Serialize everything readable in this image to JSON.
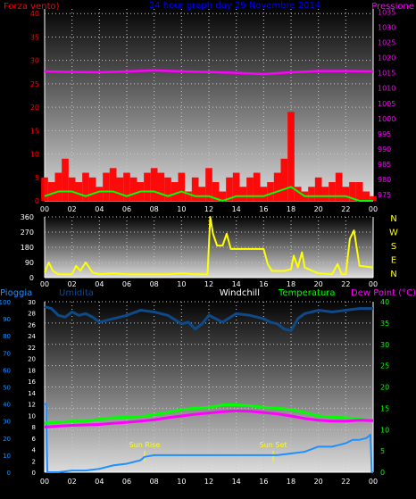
{
  "colors": {
    "background": "#000000",
    "wind": "#ff0000",
    "gust": "#00ff00",
    "pressure": "#ff00ff",
    "title": "#0000ff",
    "direction": "#ffff00",
    "rain": "#1e90ff",
    "humidity": "#0e4a8a",
    "windchill": "#ffffff",
    "temperature": "#00ff00",
    "dewpoint": "#ff00ff",
    "sun": "#ffff00"
  },
  "chart_data": [
    {
      "type": "line",
      "panel": "wind-pressure",
      "title": "24 hour graph day 29 Novembre 2014",
      "left_axis_label": "Forza vento)",
      "right_axis_label": "Pressione",
      "left_ticks": [
        "0",
        "5",
        "10",
        "15",
        "20",
        "25",
        "30",
        "35",
        "40"
      ],
      "right_ticks": [
        "975",
        "980",
        "985",
        "990",
        "995",
        "1000",
        "1005",
        "1010",
        "1015",
        "1020",
        "1025",
        "1030",
        "1035"
      ],
      "x_ticks": [
        "00",
        "02",
        "04",
        "06",
        "08",
        "10",
        "12",
        "14",
        "16",
        "18",
        "20",
        "22",
        "00"
      ],
      "xlim": [
        0,
        24
      ],
      "ylim_left": [
        0,
        41
      ],
      "ylim_right": [
        973,
        1036
      ],
      "series": [
        {
          "role": "wind_speed",
          "x": [
            0,
            0.5,
            1,
            1.5,
            2,
            2.5,
            3,
            3.5,
            4,
            4.5,
            5,
            5.5,
            6,
            6.5,
            7,
            7.5,
            8,
            8.5,
            9,
            9.5,
            10,
            10.5,
            11,
            11.5,
            12,
            12.5,
            13,
            13.5,
            14,
            14.5,
            15,
            15.5,
            16,
            16.5,
            17,
            17.5,
            18,
            18.5,
            19,
            19.5,
            20,
            20.5,
            21,
            21.5,
            22,
            22.5,
            23,
            23.5,
            24
          ],
          "values": [
            5,
            4,
            6,
            9,
            5,
            4,
            6,
            5,
            3,
            6,
            7,
            5,
            6,
            5,
            4,
            6,
            7,
            6,
            5,
            4,
            6,
            2,
            5,
            3,
            7,
            4,
            2,
            5,
            6,
            3,
            5,
            6,
            3,
            4,
            6,
            9,
            19,
            3,
            2,
            3,
            5,
            3,
            4,
            6,
            3,
            4,
            4,
            2,
            1
          ]
        },
        {
          "role": "wind_gust",
          "x": [
            0,
            1,
            2,
            3,
            4,
            5,
            6,
            7,
            8,
            9,
            10,
            11,
            12,
            13,
            14,
            15,
            16,
            17,
            18,
            19,
            20,
            21,
            22,
            23,
            24
          ],
          "values": [
            1,
            2,
            2,
            1,
            2,
            2,
            1,
            2,
            2,
            1,
            2,
            1,
            1,
            0,
            1,
            1,
            1,
            2,
            3,
            1,
            1,
            1,
            1,
            0,
            0
          ]
        },
        {
          "role": "pressure",
          "x": [
            0,
            2,
            4,
            6,
            8,
            10,
            12,
            14,
            16,
            18,
            20,
            22,
            24
          ],
          "values": [
            1015.5,
            1015.3,
            1015.2,
            1015.5,
            1015.8,
            1015.5,
            1015.3,
            1015.0,
            1014.6,
            1015.2,
            1015.6,
            1015.6,
            1015.5
          ]
        }
      ]
    },
    {
      "type": "line",
      "panel": "wind-direction",
      "y_ticks": [
        "0",
        "90",
        "180",
        "270",
        "360"
      ],
      "cardinal_labels": [
        "N",
        "W",
        "S",
        "E",
        "N"
      ],
      "x_ticks": [
        "00",
        "02",
        "04",
        "06",
        "08",
        "10",
        "12",
        "14",
        "16",
        "18",
        "20",
        "22",
        "00"
      ],
      "xlim": [
        0,
        24
      ],
      "ylim": [
        0,
        360
      ],
      "series": [
        {
          "role": "wind_direction",
          "x": [
            0,
            0.3,
            0.6,
            1,
            1.5,
            2,
            2.3,
            2.6,
            3,
            3.5,
            4,
            5,
            6,
            7,
            8,
            9,
            10,
            11,
            11.9,
            12.1,
            12.3,
            12.6,
            13,
            13.3,
            13.6,
            14,
            15,
            16,
            16.3,
            16.6,
            17,
            17.5,
            18,
            18.2,
            18.5,
            18.8,
            19,
            20,
            21,
            21.4,
            21.7,
            22,
            22.3,
            22.6,
            23,
            24
          ],
          "values": [
            30,
            90,
            40,
            20,
            20,
            20,
            70,
            40,
            90,
            30,
            20,
            25,
            20,
            20,
            20,
            20,
            25,
            20,
            20,
            360,
            260,
            190,
            190,
            260,
            170,
            170,
            170,
            170,
            80,
            40,
            40,
            40,
            50,
            130,
            60,
            150,
            60,
            25,
            20,
            80,
            20,
            20,
            230,
            280,
            70,
            60
          ]
        }
      ]
    },
    {
      "type": "line",
      "panel": "temperature-humidity",
      "legend": [
        "Pioggia",
        "Umidita",
        "Windchill",
        "Temperatura",
        "Dew Point (°C)"
      ],
      "left_ticks_rain": [
        "0",
        "10",
        "20",
        "30",
        "40",
        "50",
        "60",
        "70",
        "80",
        "90",
        "100"
      ],
      "left_ticks_humidity": [
        "0",
        "2",
        "4",
        "6",
        "8",
        "10",
        "12",
        "14",
        "16",
        "18",
        "20",
        "22",
        "24",
        "26",
        "28",
        "30"
      ],
      "right_ticks": [
        "0",
        "5",
        "10",
        "15",
        "20",
        "25",
        "30",
        "35",
        "40"
      ],
      "x_ticks": [
        "00",
        "02",
        "04",
        "06",
        "08",
        "10",
        "12",
        "14",
        "16",
        "18",
        "20",
        "22",
        "00"
      ],
      "xlim": [
        0,
        24
      ],
      "ylim_rain": [
        0,
        100
      ],
      "ylim_temp": [
        0,
        40
      ],
      "annotations": [
        {
          "label": "Sun Rise",
          "x": 7.3
        },
        {
          "label": "Sun Set",
          "x": 16.7
        }
      ],
      "series": [
        {
          "role": "humidity",
          "x": [
            0,
            0.5,
            1,
            1.5,
            2,
            2.5,
            3,
            3.5,
            4,
            5,
            6,
            7,
            8,
            9,
            10,
            10.5,
            11,
            11.5,
            12,
            12.5,
            13,
            14,
            15,
            16,
            16.5,
            17,
            17.5,
            18,
            18.5,
            19,
            20,
            21,
            22,
            23,
            24
          ],
          "values": [
            97,
            96,
            92,
            91,
            94,
            92,
            93,
            91,
            88,
            90,
            92,
            95,
            94,
            92,
            87,
            88,
            84,
            87,
            92,
            90,
            88,
            93,
            92,
            90,
            88,
            87,
            84,
            83,
            90,
            93,
            95,
            94,
            95,
            96,
            96
          ]
        },
        {
          "role": "rain",
          "x": [
            0,
            0.1,
            0.2,
            1,
            2,
            3,
            4,
            5,
            6,
            7,
            7.3,
            8,
            9,
            10,
            11,
            12,
            13,
            14,
            15,
            16,
            17,
            18,
            19,
            20,
            21,
            22,
            22.5,
            23,
            23.5,
            23.8,
            23.9,
            24
          ],
          "values": [
            40,
            40,
            0,
            0,
            1,
            1,
            2,
            4,
            5,
            7,
            9,
            10,
            10,
            10,
            10,
            10,
            10,
            10,
            10,
            10,
            10,
            11,
            12,
            15,
            15,
            17,
            19,
            19,
            20,
            22,
            0,
            0
          ]
        },
        {
          "role": "temperature",
          "x": [
            0,
            1,
            2,
            3,
            4,
            5,
            6,
            7,
            8,
            9,
            10,
            11,
            12,
            13,
            14,
            15,
            16,
            17,
            18,
            19,
            20,
            21,
            22,
            23,
            24
          ],
          "values": [
            11.5,
            11.7,
            12,
            12,
            12.4,
            12.8,
            12.9,
            13,
            13.5,
            14,
            14.7,
            15,
            15.2,
            15.8,
            15.8,
            15.6,
            15.2,
            15,
            14.7,
            14,
            13.2,
            12.9,
            12.8,
            12.4,
            12.1
          ]
        },
        {
          "role": "dewpoint",
          "x": [
            0,
            1,
            2,
            3,
            4,
            5,
            6,
            7,
            8,
            9,
            10,
            11,
            12,
            13,
            14,
            15,
            16,
            17,
            18,
            19,
            20,
            21,
            22,
            23,
            24
          ],
          "values": [
            10.6,
            10.8,
            11,
            11.1,
            11.2,
            11.5,
            11.7,
            12,
            12.3,
            12.8,
            13.2,
            13.6,
            13.9,
            14.2,
            14.4,
            14.3,
            14,
            13.7,
            13.2,
            12.6,
            12.2,
            12,
            12,
            12.2,
            12.1
          ]
        }
      ]
    }
  ]
}
